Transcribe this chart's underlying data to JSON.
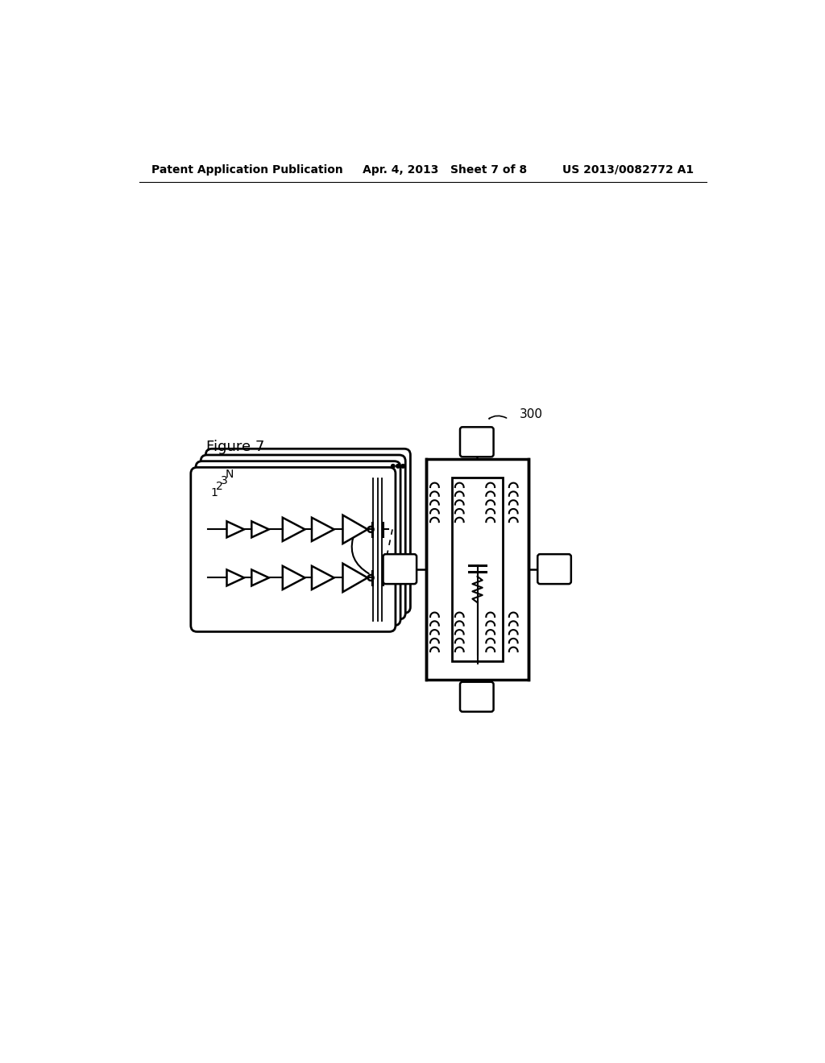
{
  "header_text": "Patent Application Publication     Apr. 4, 2013   Sheet 7 of 8         US 2013/0082772 A1",
  "figure_label": "Figure 7",
  "ref_number": "300",
  "bg": "#ffffff",
  "black": "#000000"
}
